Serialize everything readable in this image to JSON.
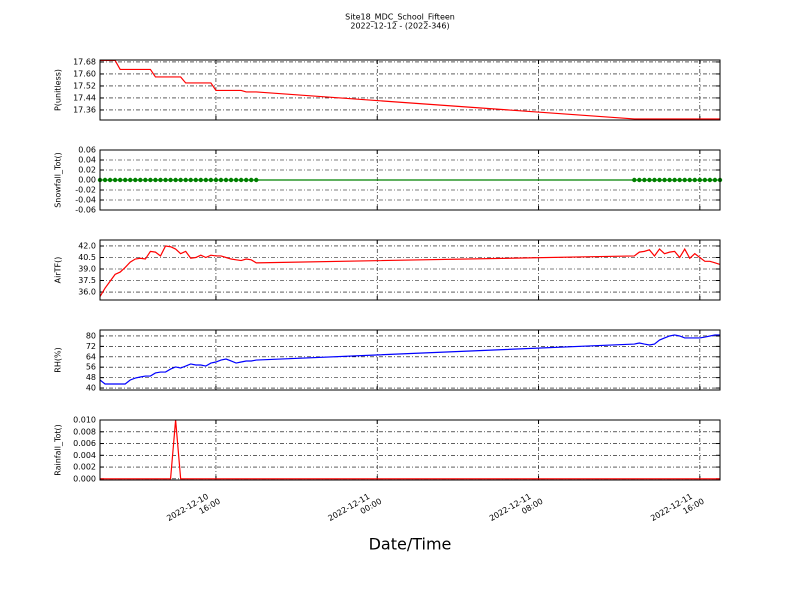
{
  "chart_data": {
    "type": "line",
    "title": "Site18_MDC_School_Fifteen",
    "subtitle": "2022-12-12 - (2022-346)",
    "x_label": "Date/Time",
    "grid": true,
    "xlim": [
      "2022-12-10 10:15",
      "2022-12-11 17:00"
    ],
    "xticks": [
      "2022-12-10 16:00",
      "2022-12-11 00:00",
      "2022-12-11 08:00",
      "2022-12-11 16:00"
    ],
    "x": [
      "2022-12-10 10:15",
      "2022-12-10 10:30",
      "2022-12-10 10:45",
      "2022-12-10 11:00",
      "2022-12-10 11:15",
      "2022-12-10 11:30",
      "2022-12-10 11:45",
      "2022-12-10 12:00",
      "2022-12-10 12:15",
      "2022-12-10 12:30",
      "2022-12-10 12:45",
      "2022-12-10 13:00",
      "2022-12-10 13:15",
      "2022-12-10 13:30",
      "2022-12-10 13:45",
      "2022-12-10 14:00",
      "2022-12-10 14:15",
      "2022-12-10 14:30",
      "2022-12-10 14:45",
      "2022-12-10 15:00",
      "2022-12-10 15:15",
      "2022-12-10 15:30",
      "2022-12-10 15:45",
      "2022-12-10 16:00",
      "2022-12-10 16:15",
      "2022-12-10 16:30",
      "2022-12-10 16:45",
      "2022-12-10 17:00",
      "2022-12-10 17:15",
      "2022-12-10 17:30",
      "2022-12-10 17:45",
      "2022-12-10 18:00",
      "2022-12-11 12:45",
      "2022-12-11 13:00",
      "2022-12-11 13:15",
      "2022-12-11 13:30",
      "2022-12-11 13:45",
      "2022-12-11 14:00",
      "2022-12-11 14:15",
      "2022-12-11 14:30",
      "2022-12-11 14:45",
      "2022-12-11 15:00",
      "2022-12-11 15:15",
      "2022-12-11 15:30",
      "2022-12-11 15:45",
      "2022-12-11 16:00",
      "2022-12-11 16:15",
      "2022-12-11 16:30",
      "2022-12-11 16:45",
      "2022-12-11 17:00"
    ],
    "panels": [
      {
        "y_label": "P(unitless)",
        "color": "#ff0000",
        "markers": false,
        "ylim": [
          17.293,
          17.693
        ],
        "yticks": [
          17.36,
          17.44,
          17.52,
          {
            "value": 17.6,
            "label": "17.60"
          },
          17.68
        ],
        "values": [
          17.69,
          17.69,
          17.69,
          17.69,
          17.63,
          17.63,
          17.63,
          17.63,
          17.63,
          17.63,
          17.63,
          17.58,
          17.58,
          17.58,
          17.58,
          17.58,
          17.58,
          17.54,
          17.54,
          17.54,
          17.54,
          17.54,
          17.54,
          17.49,
          17.49,
          17.49,
          17.49,
          17.49,
          17.49,
          17.48,
          17.48,
          17.48,
          17.3,
          17.3,
          17.3,
          17.3,
          17.3,
          17.3,
          17.3,
          17.3,
          17.3,
          17.3,
          17.3,
          17.3,
          17.3,
          17.3,
          17.3,
          17.3,
          17.3,
          17.3
        ]
      },
      {
        "y_label": "Snowfall_Tot()",
        "color": "#008000",
        "markers": true,
        "ylim": [
          -0.06,
          0.06
        ],
        "yticks": [
          -0.06,
          -0.04,
          -0.02,
          {
            "value": 0,
            "label": "0.00"
          },
          0.02,
          0.04,
          0.06
        ],
        "values": [
          0,
          0,
          0,
          0,
          0,
          0,
          0,
          0,
          0,
          0,
          0,
          0,
          0,
          0,
          0,
          0,
          0,
          0,
          0,
          0,
          0,
          0,
          0,
          0,
          0,
          0,
          0,
          0,
          0,
          0,
          0,
          0,
          0,
          0,
          0,
          0,
          0,
          0,
          0,
          0,
          0,
          0,
          0,
          0,
          0,
          0,
          0,
          0,
          0,
          0
        ]
      },
      {
        "y_label": "AirTF()",
        "color": "#ff0000",
        "markers": false,
        "ylim": [
          34.96,
          42.78
        ],
        "yticks": [
          {
            "value": 36,
            "label": "36.0"
          },
          37.5,
          {
            "value": 39,
            "label": "39.0"
          },
          40.5,
          {
            "value": 42,
            "label": "42.0"
          }
        ],
        "values": [
          35.4,
          36.5,
          37.4,
          38.3,
          38.6,
          39.2,
          39.9,
          40.3,
          40.4,
          40.3,
          41.3,
          41.2,
          40.7,
          42.0,
          41.9,
          41.6,
          41.0,
          41.3,
          40.4,
          40.5,
          40.8,
          40.5,
          40.8,
          40.7,
          40.7,
          40.5,
          40.3,
          40.2,
          40.1,
          40.3,
          40.2,
          39.8,
          40.7,
          41.2,
          41.3,
          41.5,
          40.7,
          41.6,
          41.0,
          41.2,
          41.3,
          40.5,
          41.6,
          40.4,
          41.0,
          40.5,
          40.0,
          40.0,
          39.8,
          39.6
        ]
      },
      {
        "y_label": "RH(%)",
        "color": "#0000ff",
        "markers": false,
        "ylim": [
          38.5,
          84.6
        ],
        "yticks": [
          40,
          48,
          56,
          64,
          72,
          80
        ],
        "values": [
          46.2,
          43.1,
          43.1,
          43.1,
          43.1,
          43.1,
          46.2,
          47.7,
          48.5,
          49.2,
          49.2,
          51.6,
          52.3,
          52.3,
          54.6,
          56.2,
          55.4,
          56.9,
          58.5,
          57.7,
          57.7,
          56.9,
          59.2,
          60.0,
          61.5,
          62.3,
          60.8,
          59.2,
          60.0,
          60.8,
          60.8,
          61.5,
          73.8,
          74.6,
          73.8,
          73.1,
          73.8,
          76.9,
          78.5,
          80.0,
          80.8,
          80.0,
          78.5,
          78.5,
          78.5,
          78.5,
          79.2,
          80.0,
          80.8,
          80.8
        ]
      },
      {
        "y_label": "Rainfall_Tot()",
        "color": "#ff0000",
        "markers": false,
        "ylim": [
          -0.0002,
          0.01
        ],
        "yticks": [
          {
            "value": 0,
            "label": "0.000"
          },
          0.002,
          0.004,
          0.006,
          0.008,
          {
            "value": 0.01,
            "label": "0.010"
          }
        ],
        "values": [
          0,
          0,
          0,
          0,
          0,
          0,
          0,
          0,
          0,
          0,
          0,
          0,
          0,
          0,
          0,
          0.01,
          0,
          0,
          0,
          0,
          0,
          0,
          0,
          0,
          0,
          0,
          0,
          0,
          0,
          0,
          0,
          0,
          0,
          0,
          0,
          0,
          0,
          0,
          0,
          0,
          0,
          0,
          0,
          0,
          0,
          0,
          0,
          0,
          0,
          0
        ]
      }
    ]
  }
}
